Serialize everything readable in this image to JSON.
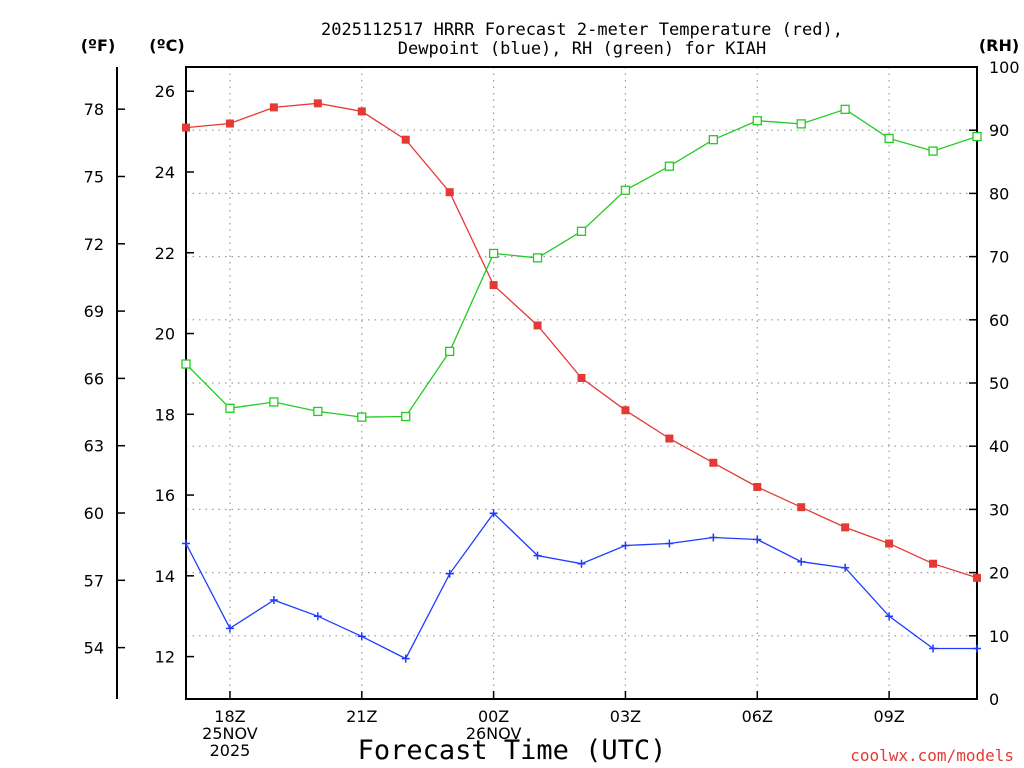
{
  "chart_data": {
    "type": "line",
    "title_line1": "2025112517 HRRR Forecast 2-meter Temperature (red),",
    "title_line2": "Dewpoint (blue), RH (green) for KIAH",
    "xlabel": "Forecast Time (UTC)",
    "credit": "coolwx.com/models",
    "units": {
      "fahrenheit": "(ºF)",
      "celsius": "(ºC)",
      "rh": "(RH)"
    },
    "x_hours": [
      17,
      18,
      19,
      20,
      21,
      22,
      23,
      24,
      25,
      26,
      27,
      28,
      29,
      30,
      31,
      32,
      33,
      34,
      35
    ],
    "xlim": [
      17,
      35
    ],
    "x_ticks": [
      {
        "hour": 18,
        "lines": [
          "18Z",
          "25NOV",
          "2025"
        ]
      },
      {
        "hour": 21,
        "lines": [
          "21Z"
        ]
      },
      {
        "hour": 24,
        "lines": [
          "00Z",
          "26NOV"
        ]
      },
      {
        "hour": 27,
        "lines": [
          "03Z"
        ]
      },
      {
        "hour": 30,
        "lines": [
          "06Z"
        ]
      },
      {
        "hour": 33,
        "lines": [
          "09Z"
        ]
      }
    ],
    "celsius_axis": {
      "ylim": [
        10.95,
        26.6
      ],
      "ticks": [
        12,
        14,
        16,
        18,
        20,
        22,
        24,
        26
      ]
    },
    "fahrenheit_ticks": [
      54,
      57,
      60,
      63,
      66,
      69,
      72,
      75,
      78
    ],
    "rh_axis": {
      "ylim": [
        0,
        100
      ],
      "ticks": [
        0,
        10,
        20,
        30,
        40,
        50,
        60,
        70,
        80,
        90,
        100
      ]
    },
    "series": [
      {
        "name": "Temperature",
        "axis": "celsius",
        "color": "#e53935",
        "marker": "filled-square",
        "values": [
          25.1,
          25.2,
          25.6,
          25.7,
          25.5,
          24.8,
          23.5,
          21.2,
          20.2,
          18.9,
          18.1,
          17.4,
          16.8,
          16.2,
          15.7,
          15.2,
          14.8,
          14.3,
          13.95
        ]
      },
      {
        "name": "Dewpoint",
        "axis": "celsius",
        "color": "#1e3cff",
        "marker": "plus",
        "values": [
          14.8,
          12.7,
          13.4,
          13.0,
          12.5,
          11.95,
          14.05,
          15.55,
          14.5,
          14.3,
          14.75,
          14.8,
          14.95,
          14.9,
          14.35,
          14.2,
          13.0,
          12.2,
          12.2
        ]
      },
      {
        "name": "RH",
        "axis": "rh",
        "color": "#22cc22",
        "marker": "open-square",
        "values": [
          53,
          46,
          47,
          45.5,
          44.6,
          44.7,
          55,
          70.5,
          69.8,
          74,
          80.5,
          84.3,
          88.5,
          91.5,
          91,
          93.3,
          88.7,
          86.7,
          89
        ]
      }
    ]
  }
}
